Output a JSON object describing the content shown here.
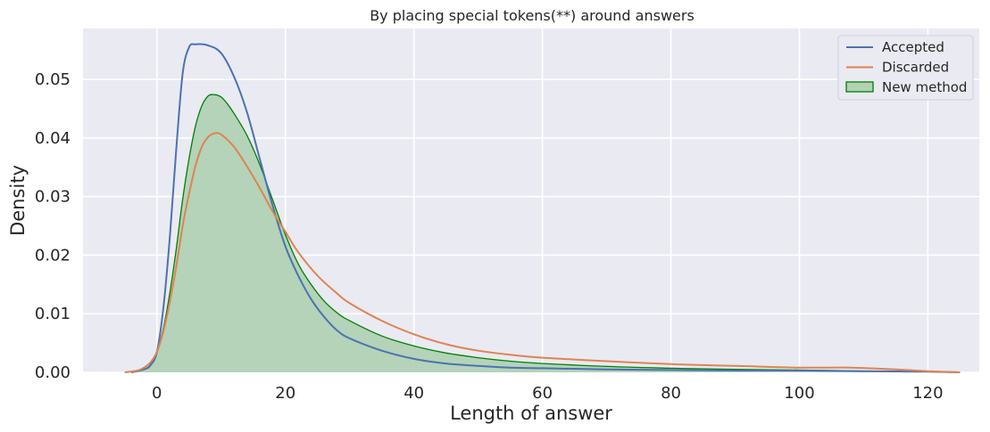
{
  "chart_data": {
    "type": "area",
    "title": "By placing special tokens(**) around answers",
    "xlabel": "Length of answer",
    "ylabel": "Density",
    "xlim": [
      -11.5,
      128
    ],
    "ylim": [
      0,
      0.0587
    ],
    "xticks": [
      0,
      20,
      40,
      60,
      80,
      100,
      120
    ],
    "yticks": [
      0.0,
      0.01,
      0.02,
      0.03,
      0.04,
      0.05
    ],
    "ytick_labels": [
      "0.00",
      "0.01",
      "0.02",
      "0.03",
      "0.04",
      "0.05"
    ],
    "grid": true,
    "legend_position": "top-right",
    "background": "#eaeaf2",
    "series": [
      {
        "name": "Accepted",
        "style": "line",
        "color": "#4c72b0",
        "x": [
          -4,
          -2,
          -1,
          0,
          1,
          2,
          3,
          4,
          5,
          6,
          8,
          10,
          12,
          14,
          16,
          18,
          20,
          22,
          24,
          26,
          28,
          30,
          35,
          40,
          45,
          50,
          55,
          60,
          70,
          80,
          90,
          100,
          110,
          120,
          125
        ],
        "y": [
          0.0,
          0.0005,
          0.0012,
          0.0035,
          0.011,
          0.023,
          0.038,
          0.051,
          0.0555,
          0.056,
          0.0558,
          0.0545,
          0.0505,
          0.0445,
          0.0365,
          0.0285,
          0.0215,
          0.0165,
          0.0125,
          0.0095,
          0.0072,
          0.0058,
          0.0037,
          0.0023,
          0.0015,
          0.0011,
          0.0008,
          0.0007,
          0.0005,
          0.0004,
          0.0003,
          0.0003,
          0.0002,
          0.0001,
          0.0
        ]
      },
      {
        "name": "Discarded",
        "style": "line",
        "color": "#dd8452",
        "x": [
          -5,
          -3,
          -2,
          -1,
          0,
          1,
          2,
          3,
          4,
          5,
          6,
          7,
          8,
          9,
          10,
          12,
          14,
          16,
          18,
          20,
          22,
          25,
          28,
          30,
          35,
          40,
          45,
          50,
          55,
          60,
          70,
          80,
          90,
          100,
          108,
          115,
          120,
          125
        ],
        "y": [
          0.0,
          0.0003,
          0.0008,
          0.0017,
          0.0035,
          0.007,
          0.012,
          0.018,
          0.025,
          0.0305,
          0.0352,
          0.0385,
          0.0402,
          0.0408,
          0.0406,
          0.0385,
          0.0352,
          0.0315,
          0.0275,
          0.024,
          0.0205,
          0.0165,
          0.0135,
          0.0118,
          0.0088,
          0.0065,
          0.0048,
          0.0037,
          0.003,
          0.0025,
          0.0019,
          0.0014,
          0.0011,
          0.0008,
          0.0008,
          0.0005,
          0.0002,
          0.0
        ]
      },
      {
        "name": "New method",
        "style": "filled",
        "color": "#008000",
        "fill": "#b1d2b5",
        "x": [
          -5,
          -3,
          -2,
          -1,
          0,
          1,
          2,
          3,
          4,
          5,
          6,
          7,
          8,
          9,
          10,
          11,
          12,
          14,
          16,
          18,
          20,
          22,
          24,
          26,
          28,
          30,
          35,
          40,
          45,
          50,
          55,
          60,
          70,
          80,
          90,
          100,
          110,
          120,
          125
        ],
        "y": [
          0.0,
          0.0003,
          0.0008,
          0.0016,
          0.0035,
          0.0075,
          0.0135,
          0.021,
          0.0295,
          0.0365,
          0.042,
          0.0455,
          0.0472,
          0.0474,
          0.047,
          0.0458,
          0.0442,
          0.0405,
          0.0355,
          0.0295,
          0.0235,
          0.0185,
          0.015,
          0.0122,
          0.0102,
          0.0088,
          0.0062,
          0.0045,
          0.0033,
          0.0025,
          0.0019,
          0.0015,
          0.001,
          0.0007,
          0.0005,
          0.0004,
          0.0002,
          0.0001,
          0.0
        ]
      }
    ]
  }
}
